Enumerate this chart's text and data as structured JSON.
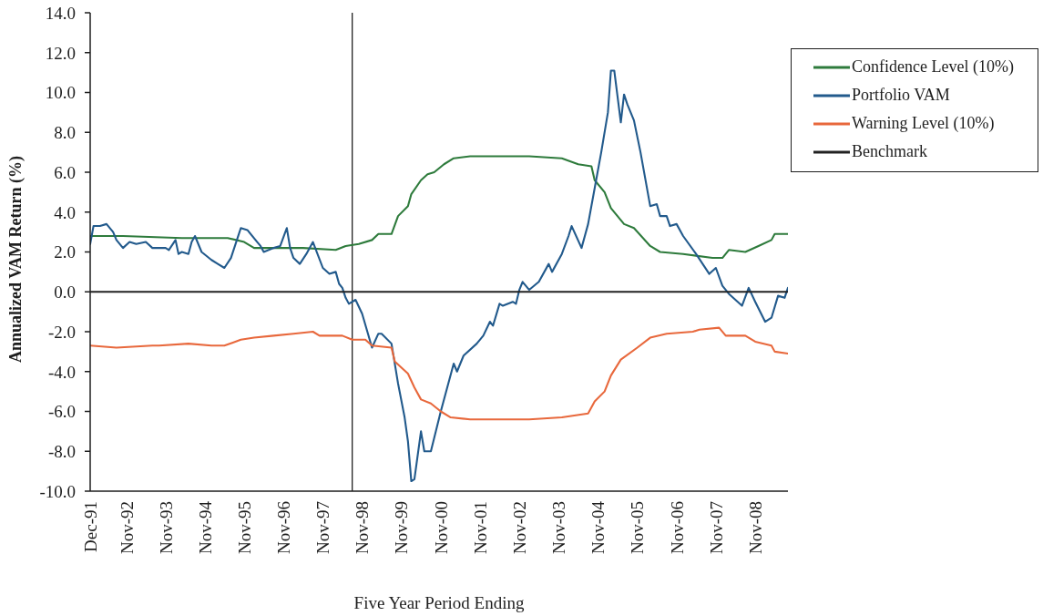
{
  "chart_data": {
    "type": "line",
    "xlabel": "Five Year Period Ending",
    "ylabel": "Annualized VAM Return (%)",
    "xlim": [
      "1991-12",
      "2009-09"
    ],
    "xticks": [
      {
        "value": "1991-12",
        "label": "Dec-91"
      },
      {
        "value": "1992-11",
        "label": "Nov-92"
      },
      {
        "value": "1993-11",
        "label": "Nov-93"
      },
      {
        "value": "1994-11",
        "label": "Nov-94"
      },
      {
        "value": "1995-11",
        "label": "Nov-95"
      },
      {
        "value": "1996-11",
        "label": "Nov-96"
      },
      {
        "value": "1997-11",
        "label": "Nov-97"
      },
      {
        "value": "1998-11",
        "label": "Nov-98"
      },
      {
        "value": "1999-11",
        "label": "Nov-99"
      },
      {
        "value": "2000-11",
        "label": "Nov-00"
      },
      {
        "value": "2001-11",
        "label": "Nov-01"
      },
      {
        "value": "2002-11",
        "label": "Nov-02"
      },
      {
        "value": "2003-11",
        "label": "Nov-03"
      },
      {
        "value": "2004-11",
        "label": "Nov-04"
      },
      {
        "value": "2005-11",
        "label": "Nov-05"
      },
      {
        "value": "2006-11",
        "label": "Nov-06"
      },
      {
        "value": "2007-11",
        "label": "Nov-07"
      },
      {
        "value": "2008-11",
        "label": "Nov-08"
      }
    ],
    "ylim": [
      -10,
      14
    ],
    "yticks": [
      {
        "value": -10,
        "label": "-10.0"
      },
      {
        "value": -8,
        "label": "-8.0"
      },
      {
        "value": -6,
        "label": "-6.0"
      },
      {
        "value": -4,
        "label": "-4.0"
      },
      {
        "value": -2,
        "label": "-2.0"
      },
      {
        "value": 0,
        "label": "0.0"
      },
      {
        "value": 2,
        "label": "2.0"
      },
      {
        "value": 4,
        "label": "4.0"
      },
      {
        "value": 6,
        "label": "6.0"
      },
      {
        "value": 8,
        "label": "8.0"
      },
      {
        "value": 10,
        "label": "10.0"
      },
      {
        "value": 12,
        "label": "12.0"
      },
      {
        "value": 14,
        "label": "14.0"
      }
    ],
    "legend": "top right",
    "ref_lines": [
      {
        "axis": "x",
        "value": "1998-08",
        "color": "#222222"
      }
    ],
    "series": [
      {
        "name": "Confidence Level (10%)",
        "color": "#2e7b3c",
        "x": [
          "1991-12",
          "1992-10",
          "1994-04",
          "1995-06",
          "1995-11",
          "1996-02",
          "1997-05",
          "1998-03",
          "1998-06",
          "1998-10",
          "1999-02",
          "1999-04",
          "1999-08",
          "1999-10",
          "2000-01",
          "2000-02",
          "2000-05",
          "2000-07",
          "2000-09",
          "2000-12",
          "2001-03",
          "2001-08",
          "2002-05",
          "2003-02",
          "2003-12",
          "2004-05",
          "2004-09",
          "2004-10",
          "2005-01",
          "2005-03",
          "2005-07",
          "2005-10",
          "2006-03",
          "2006-06",
          "2007-01",
          "2007-10",
          "2008-01",
          "2008-03",
          "2008-08",
          "2008-12",
          "2009-04",
          "2009-05",
          "2009-09"
        ],
        "values": [
          2.8,
          2.8,
          2.7,
          2.7,
          2.5,
          2.2,
          2.2,
          2.1,
          2.3,
          2.4,
          2.6,
          2.9,
          2.9,
          3.8,
          4.3,
          4.9,
          5.6,
          5.9,
          6.0,
          6.4,
          6.7,
          6.8,
          6.8,
          6.8,
          6.7,
          6.4,
          6.3,
          5.6,
          5.0,
          4.2,
          3.4,
          3.2,
          2.3,
          2.0,
          1.9,
          1.7,
          1.7,
          2.1,
          2.0,
          2.3,
          2.6,
          2.9,
          2.9
        ]
      },
      {
        "name": "Portfolio VAM",
        "color": "#225a8c",
        "x": [
          "1991-12",
          "1992-01",
          "1992-03",
          "1992-05",
          "1992-07",
          "1992-08",
          "1992-10",
          "1992-12",
          "1993-02",
          "1993-05",
          "1993-07",
          "1993-11",
          "1993-12",
          "1994-02",
          "1994-03",
          "1994-04",
          "1994-06",
          "1994-07",
          "1994-08",
          "1994-10",
          "1995-01",
          "1995-03",
          "1995-05",
          "1995-07",
          "1995-10",
          "1995-12",
          "1996-03",
          "1996-04",
          "1996-05",
          "1996-08",
          "1996-10",
          "1996-12",
          "1997-01",
          "1997-02",
          "1997-04",
          "1997-06",
          "1997-08",
          "1997-11",
          "1998-01",
          "1998-03",
          "1998-04",
          "1998-05",
          "1998-06",
          "1998-07",
          "1998-09",
          "1998-11",
          "1999-02",
          "1999-04",
          "1999-05",
          "1999-08",
          "1999-10",
          "1999-12",
          "2000-01",
          "2000-02",
          "2000-03",
          "2000-05",
          "2000-06",
          "2000-08",
          "2000-11",
          "2001-03",
          "2001-04",
          "2001-06",
          "2001-10",
          "2001-12",
          "2002-02",
          "2002-03",
          "2002-05",
          "2002-06",
          "2002-09",
          "2002-10",
          "2002-11",
          "2002-12",
          "2003-02",
          "2003-05",
          "2003-08",
          "2003-09",
          "2003-12",
          "2004-02",
          "2004-03",
          "2004-06",
          "2004-08",
          "2004-10",
          "2004-12",
          "2005-02",
          "2005-03",
          "2005-04",
          "2005-06",
          "2005-07",
          "2005-08",
          "2005-10",
          "2005-12",
          "2006-03",
          "2006-05",
          "2006-06",
          "2006-08",
          "2006-09",
          "2006-11",
          "2007-01",
          "2007-05",
          "2007-09",
          "2007-11",
          "2008-01",
          "2008-03",
          "2008-05",
          "2008-07",
          "2008-09",
          "2008-11",
          "2009-02",
          "2009-04",
          "2009-06",
          "2009-08",
          "2009-09"
        ],
        "values": [
          2.4,
          3.3,
          3.3,
          3.4,
          3.0,
          2.6,
          2.2,
          2.5,
          2.4,
          2.5,
          2.2,
          2.2,
          2.1,
          2.6,
          1.9,
          2.0,
          1.9,
          2.5,
          2.8,
          2.0,
          1.6,
          1.4,
          1.2,
          1.7,
          3.2,
          3.1,
          2.5,
          2.3,
          2.0,
          2.2,
          2.3,
          3.2,
          2.2,
          1.7,
          1.4,
          1.9,
          2.5,
          1.2,
          0.9,
          1.0,
          0.4,
          0.2,
          -0.3,
          -0.6,
          -0.4,
          -1.1,
          -2.8,
          -2.1,
          -2.1,
          -2.6,
          -4.6,
          -6.3,
          -7.5,
          -9.5,
          -9.4,
          -7.0,
          -8.0,
          -8.0,
          -6.0,
          -3.6,
          -4.0,
          -3.2,
          -2.6,
          -2.2,
          -1.5,
          -1.7,
          -0.6,
          -0.7,
          -0.5,
          -0.6,
          0.1,
          0.5,
          0.1,
          0.5,
          1.4,
          1.0,
          1.9,
          2.8,
          3.3,
          2.2,
          3.4,
          5.2,
          7.0,
          9.0,
          11.1,
          11.1,
          8.5,
          9.9,
          9.4,
          8.6,
          7.0,
          4.3,
          4.4,
          3.8,
          3.8,
          3.3,
          3.4,
          2.8,
          1.9,
          0.9,
          1.2,
          0.3,
          -0.1,
          -0.4,
          -0.7,
          0.2,
          -0.5,
          -1.5,
          -1.3,
          -0.2,
          -0.3,
          0.2
        ]
      },
      {
        "name": "Warning Level (10%)",
        "color": "#e8683c",
        "x": [
          "1991-12",
          "1992-08",
          "1993-07",
          "1993-09",
          "1994-06",
          "1995-01",
          "1995-05",
          "1995-10",
          "1996-02",
          "1996-08",
          "1997-02",
          "1997-08",
          "1997-10",
          "1998-05",
          "1998-08",
          "1998-12",
          "1999-02",
          "1999-08",
          "1999-09",
          "2000-01",
          "2000-03",
          "2000-05",
          "2000-08",
          "2000-11",
          "2001-02",
          "2001-08",
          "2003-02",
          "2003-12",
          "2004-08",
          "2004-10",
          "2005-01",
          "2005-03",
          "2005-06",
          "2005-11",
          "2006-03",
          "2006-08",
          "2007-04",
          "2007-06",
          "2007-12",
          "2008-02",
          "2008-08",
          "2008-11",
          "2009-04",
          "2009-05",
          "2009-09"
        ],
        "values": [
          -2.7,
          -2.8,
          -2.7,
          -2.7,
          -2.6,
          -2.7,
          -2.7,
          -2.4,
          -2.3,
          -2.2,
          -2.1,
          -2.0,
          -2.2,
          -2.2,
          -2.4,
          -2.4,
          -2.7,
          -2.8,
          -3.5,
          -4.1,
          -4.8,
          -5.4,
          -5.6,
          -6.0,
          -6.3,
          -6.4,
          -6.4,
          -6.3,
          -6.1,
          -5.5,
          -5.0,
          -4.2,
          -3.4,
          -2.8,
          -2.3,
          -2.1,
          -2.0,
          -1.9,
          -1.8,
          -2.2,
          -2.2,
          -2.5,
          -2.7,
          -3.0,
          -3.1
        ]
      },
      {
        "name": "Benchmark",
        "color": "#222222",
        "x": [
          "1991-12",
          "2009-09"
        ],
        "values": [
          0,
          0
        ]
      }
    ]
  }
}
